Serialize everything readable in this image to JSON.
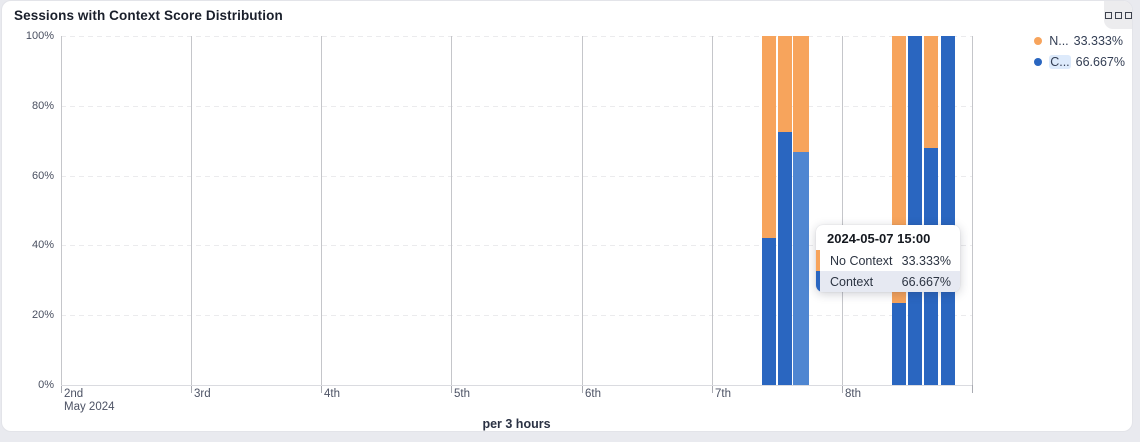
{
  "header": {
    "title": "Sessions with Context Score Distribution"
  },
  "toolbar": {
    "options_icon": "three-boxes-icon"
  },
  "legend": {
    "items": [
      {
        "label": "N...",
        "value": "33.333%",
        "color": "#f7a45c",
        "highlighted": false
      },
      {
        "label": "C...",
        "value": "66.667%",
        "color": "#2a66c0",
        "highlighted": true
      }
    ]
  },
  "tooltip": {
    "title": "2024-05-07 15:00",
    "rows": [
      {
        "label": "No Context",
        "value": "33.333%",
        "color": "#f7a45c",
        "highlighted": false
      },
      {
        "label": "Context",
        "value": "66.667%",
        "color": "#2a66c0",
        "highlighted": true
      }
    ]
  },
  "chart_data": {
    "type": "bar",
    "stacked": true,
    "title": "Sessions with Context Score Distribution",
    "xlabel": "per 3 hours",
    "ylabel": "",
    "ylim": [
      0,
      100
    ],
    "grid": {
      "horizontal": "dashed",
      "vertical": "solid"
    },
    "legend_position": "top-right",
    "y_tick_labels": [
      "0%",
      "20%",
      "40%",
      "60%",
      "80%",
      "100%"
    ],
    "x_tick_labels": [
      "2nd",
      "3rd",
      "4th",
      "5th",
      "6th",
      "7th",
      "8th"
    ],
    "x_axis_caption": "May 2024",
    "x_domain_days": 7,
    "slots_per_day": 8,
    "series_names": [
      "Context",
      "No Context"
    ],
    "colors": {
      "context": "#2a66c0",
      "context_hover": "#4f86d1",
      "no_context": "#f7a45c"
    },
    "bars": [
      {
        "time": "2024-05-07 09:00",
        "context": 42.0,
        "no_context": 58.0,
        "hover": false
      },
      {
        "time": "2024-05-07 12:00",
        "context": 72.5,
        "no_context": 27.5,
        "hover": false
      },
      {
        "time": "2024-05-07 15:00",
        "context": 66.667,
        "no_context": 33.333,
        "hover": true
      },
      {
        "time": "2024-05-08 09:00",
        "context": 23.5,
        "no_context": 76.5,
        "hover": false
      },
      {
        "time": "2024-05-08 12:00",
        "context": 100,
        "no_context": 0,
        "hover": false
      },
      {
        "time": "2024-05-08 15:00",
        "context": 68.0,
        "no_context": 32.0,
        "hover": false
      },
      {
        "time": "2024-05-08 18:00",
        "context": 100,
        "no_context": 0,
        "hover": false
      }
    ]
  }
}
